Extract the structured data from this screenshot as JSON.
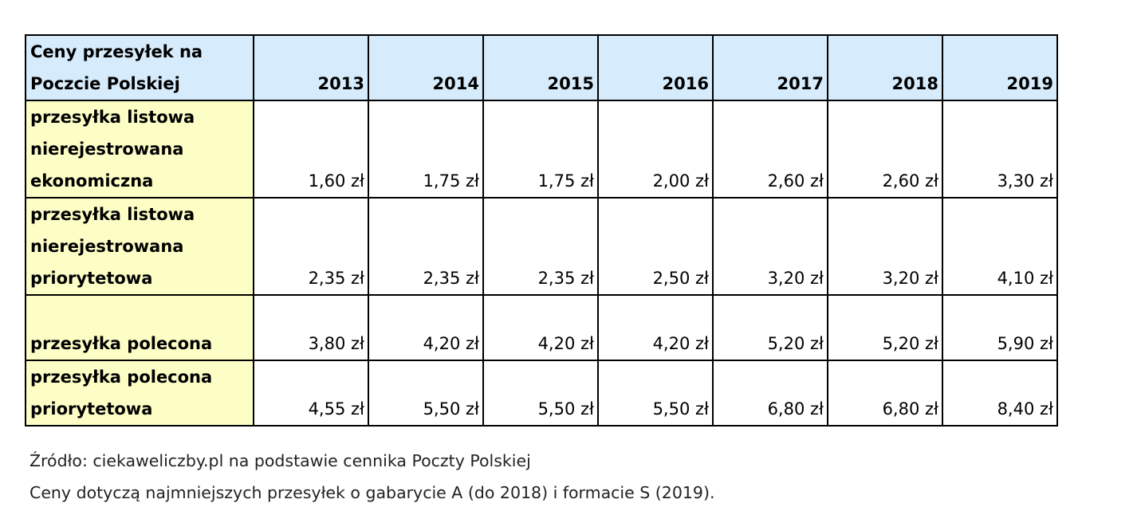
{
  "table": {
    "corner_label_lines": [
      "Ceny przesyłek na",
      "Poczcie Polskiej"
    ],
    "years": [
      "2013",
      "2014",
      "2015",
      "2016",
      "2017",
      "2018",
      "2019"
    ],
    "rows": [
      {
        "label_lines": [
          "przesyłka listowa",
          "nierejestrowana",
          "ekonomiczna"
        ],
        "prices": [
          "1,60 zł",
          "1,75 zł",
          "1,75 zł",
          "2,00 zł",
          "2,60 zł",
          "2,60 zł",
          "3,30 zł"
        ]
      },
      {
        "label_lines": [
          "przesyłka listowa",
          "nierejestrowana",
          "priorytetowa"
        ],
        "prices": [
          "2,35 zł",
          "2,35 zł",
          "2,35 zł",
          "2,50 zł",
          "3,20 zł",
          "3,20 zł",
          "4,10 zł"
        ]
      },
      {
        "label_lines": [
          "przesyłka polecona"
        ],
        "prices": [
          "3,80 zł",
          "4,20 zł",
          "4,20 zł",
          "4,20 zł",
          "5,20 zł",
          "5,20 zł",
          "5,90 zł"
        ]
      },
      {
        "label_lines": [
          "przesyłka polecona",
          "priorytetowa"
        ],
        "prices": [
          "4,55 zł",
          "5,50 zł",
          "5,50 zł",
          "5,50 zł",
          "6,80 zł",
          "6,80 zł",
          "8,40 zł"
        ]
      }
    ]
  },
  "notes": {
    "source": "Źródło: ciekaweliczby.pl na podstawie cennika Poczty Polskiej",
    "remark": "Ceny dotyczą najmniejszych przesyłek o gabarycie A (do 2018) i formacie S (2019)."
  },
  "colors": {
    "header_background": "#d6ecfc",
    "label_background": "#fdfdc6",
    "border": "#000000"
  }
}
